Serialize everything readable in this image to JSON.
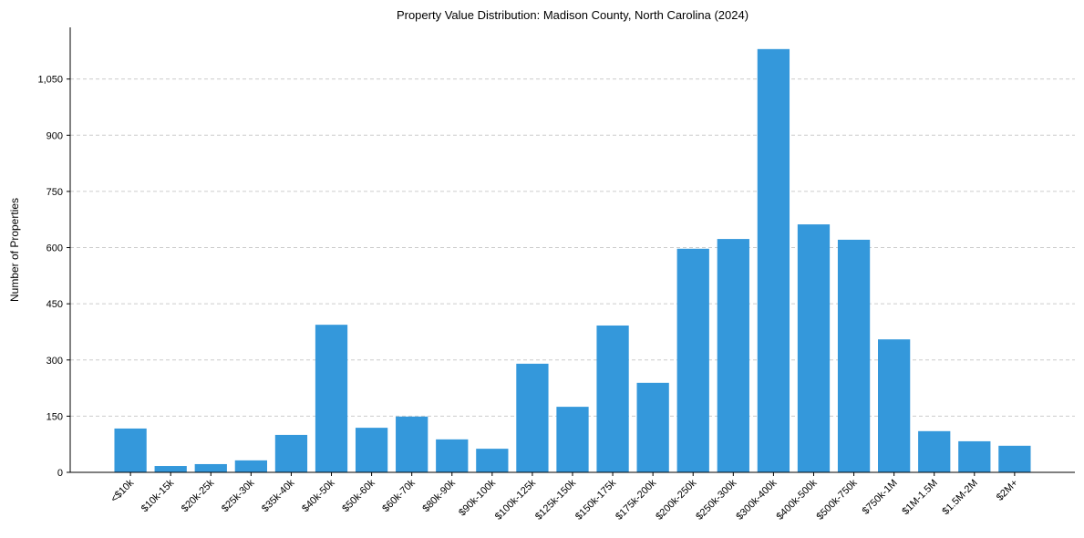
{
  "chart_data": {
    "type": "bar",
    "title": "Property Value Distribution: Madison County, North Carolina (2024)",
    "xlabel": "",
    "ylabel": "Number of Properties",
    "categories": [
      "<$10k",
      "$10k-15k",
      "$20k-25k",
      "$25k-30k",
      "$35k-40k",
      "$40k-50k",
      "$50k-60k",
      "$60k-70k",
      "$80k-90k",
      "$90k-100k",
      "$100k-125k",
      "$125k-150k",
      "$150k-175k",
      "$175k-200k",
      "$200k-250k",
      "$250k-300k",
      "$300k-400k",
      "$400k-500k",
      "$500k-750k",
      "$750k-1M",
      "$1M-1.5M",
      "$1.5M-2M",
      "$2M+"
    ],
    "values": [
      117,
      17,
      22,
      32,
      100,
      394,
      119,
      149,
      88,
      63,
      290,
      175,
      392,
      239,
      597,
      623,
      1130,
      662,
      621,
      355,
      110,
      83,
      71
    ],
    "yticks": [
      0,
      150,
      300,
      450,
      600,
      750,
      900,
      1050
    ],
    "ytick_labels": [
      "0",
      "150",
      "300",
      "450",
      "600",
      "750",
      "900",
      "1,050"
    ],
    "ylim": [
      0,
      1188
    ],
    "grid": "y-dashed",
    "color": "#3498db"
  }
}
